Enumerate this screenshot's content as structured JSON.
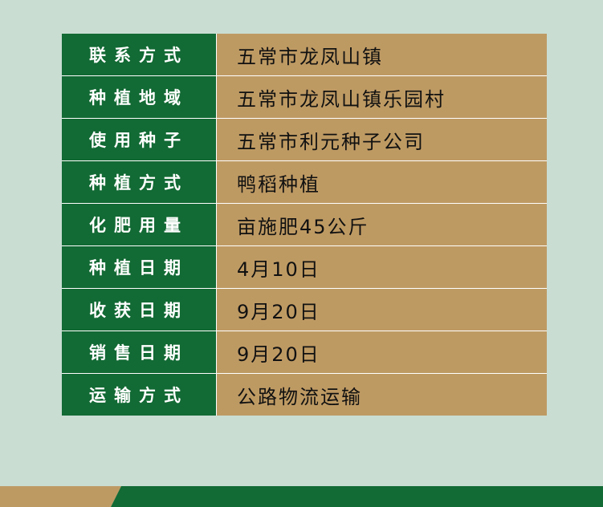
{
  "rows": [
    {
      "label": "联系方式",
      "value": "五常市龙凤山镇"
    },
    {
      "label": "种植地域",
      "value": "五常市龙凤山镇乐园村"
    },
    {
      "label": "使用种子",
      "value": "五常市利元种子公司"
    },
    {
      "label": "种植方式",
      "value": "鸭稻种植"
    },
    {
      "label": "化肥用量",
      "value": "亩施肥45公斤"
    },
    {
      "label": "种植日期",
      "value": "4月10日"
    },
    {
      "label": "收获日期",
      "value": "9月20日"
    },
    {
      "label": "销售日期",
      "value": "9月20日"
    },
    {
      "label": "运输方式",
      "value": "公路物流运输"
    }
  ],
  "colors": {
    "background": "#c9ddd3",
    "label_green": "#126a34",
    "value_tan": "#be9a63",
    "footer_tan": "#be9a63",
    "footer_green": "#126a34"
  }
}
